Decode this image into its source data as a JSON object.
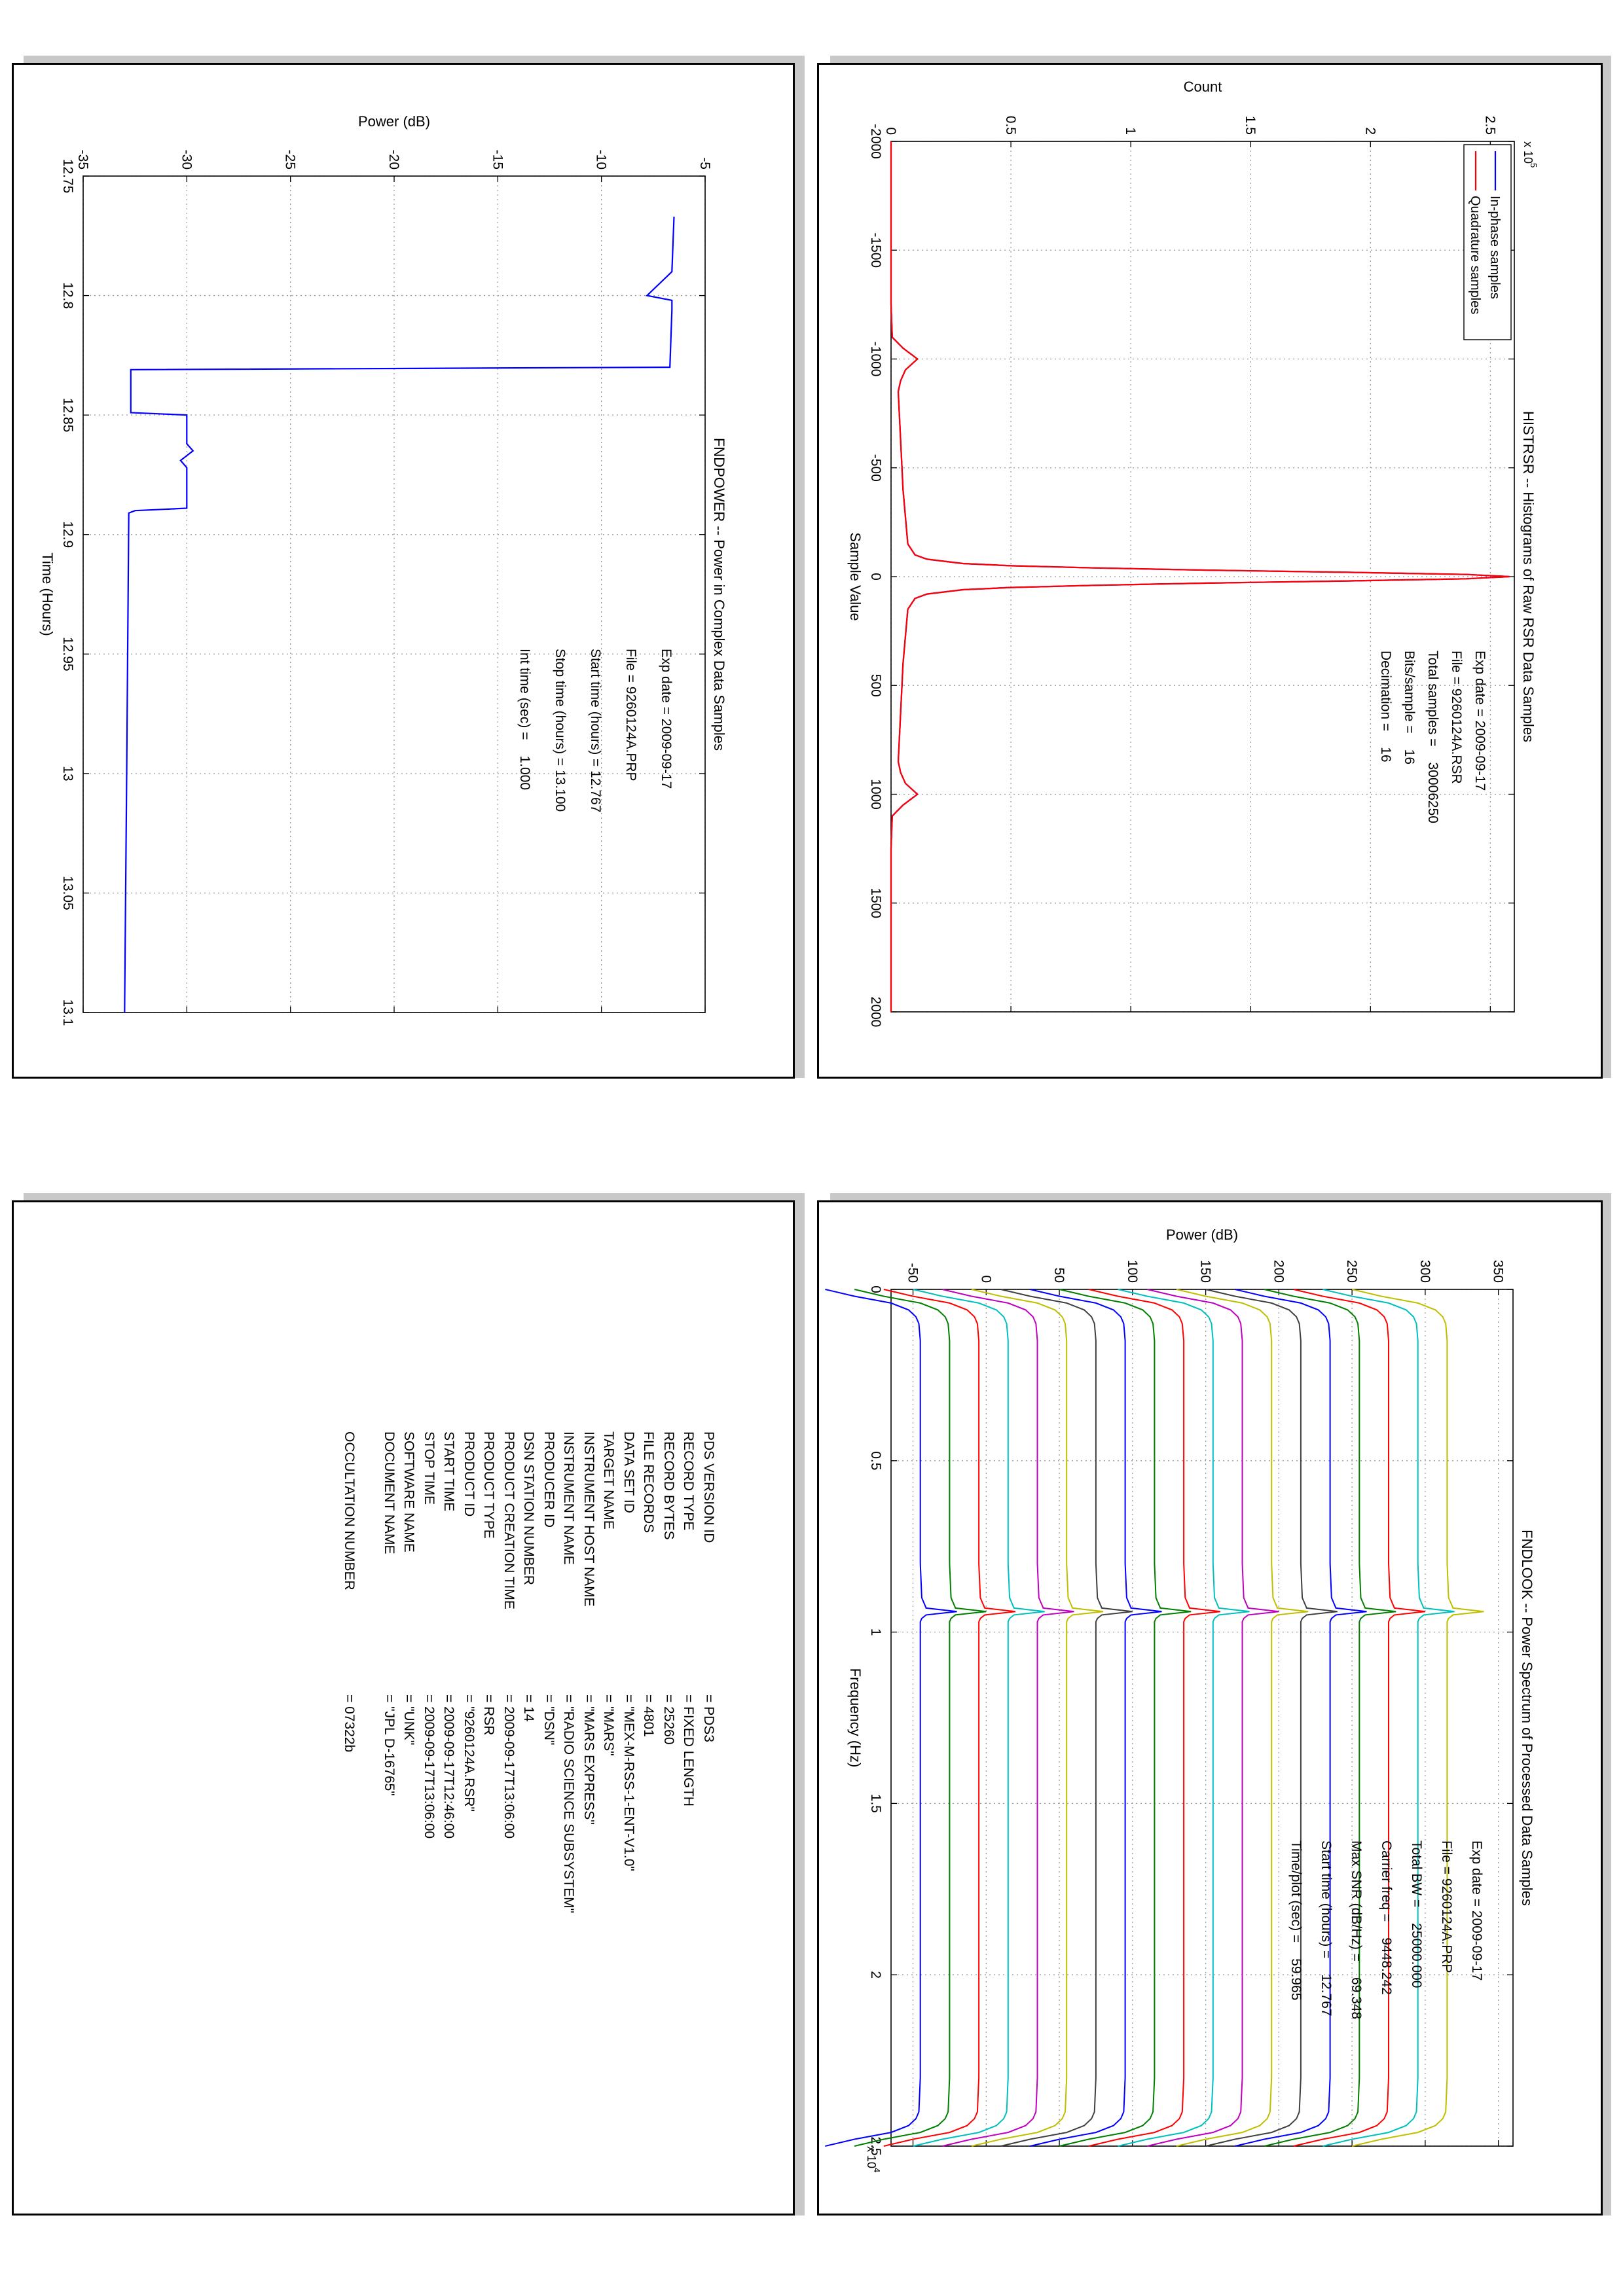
{
  "chart_data": [
    {
      "type": "line",
      "title": "HISTRSR -- Histograms of Raw RSR Data Samples",
      "xlabel": "Sample Value",
      "ylabel": "Count",
      "y_exponent": "x 10",
      "y_exponent_power": "5",
      "xlim": [
        -2000,
        2000
      ],
      "ylim": [
        0,
        2.6
      ],
      "x_ticks": [
        "-2000",
        "-1500",
        "-1000",
        "-500",
        "0",
        "500",
        "1000",
        "1500",
        "2000"
      ],
      "y_ticks": [
        "0",
        "0.5",
        "1",
        "1.5",
        "2",
        "2.5"
      ],
      "grid": true,
      "legend_position": "top-left",
      "series": [
        {
          "name": "In-phase samples",
          "color": "#0000ff",
          "x": [
            -2000,
            -1250,
            -1100,
            -1050,
            -1000,
            -950,
            -900,
            -850,
            -400,
            -150,
            -100,
            -80,
            -60,
            -50,
            -40,
            -30,
            -20,
            -10,
            0,
            10,
            20,
            30,
            40,
            50,
            60,
            80,
            100,
            150,
            400,
            850,
            900,
            950,
            1000,
            1050,
            1100,
            1250,
            2000
          ],
          "y": [
            0,
            0,
            0.005,
            0.05,
            0.11,
            0.06,
            0.04,
            0.03,
            0.05,
            0.07,
            0.1,
            0.15,
            0.3,
            0.5,
            0.85,
            1.3,
            1.9,
            2.4,
            2.58,
            2.4,
            1.9,
            1.3,
            0.85,
            0.5,
            0.3,
            0.15,
            0.1,
            0.07,
            0.05,
            0.03,
            0.04,
            0.06,
            0.11,
            0.05,
            0.005,
            0,
            0
          ]
        },
        {
          "name": "Quadrature samples",
          "color": "#ff0000",
          "x": [
            -2000,
            -1250,
            -1100,
            -1050,
            -1000,
            -950,
            -900,
            -850,
            -400,
            -150,
            -100,
            -80,
            -60,
            -50,
            -40,
            -30,
            -20,
            -10,
            0,
            10,
            20,
            30,
            40,
            50,
            60,
            80,
            100,
            150,
            400,
            850,
            900,
            950,
            1000,
            1050,
            1100,
            1250,
            2000
          ],
          "y": [
            0,
            0,
            0.005,
            0.05,
            0.11,
            0.06,
            0.04,
            0.03,
            0.05,
            0.07,
            0.1,
            0.15,
            0.3,
            0.5,
            0.85,
            1.3,
            1.9,
            2.4,
            2.58,
            2.4,
            1.9,
            1.3,
            0.85,
            0.5,
            0.3,
            0.15,
            0.1,
            0.07,
            0.05,
            0.03,
            0.04,
            0.06,
            0.11,
            0.05,
            0.005,
            0,
            0
          ]
        }
      ],
      "annotation": [
        {
          "label": "Exp date = 2009-09-17"
        },
        {
          "label": "File = 9260124A.RSR"
        },
        {
          "label": "Total samples =",
          "value": "30006250"
        },
        {
          "label": "Bits/sample   =",
          "value": "16"
        },
        {
          "label": "Decimation    =",
          "value": "16"
        }
      ]
    },
    {
      "type": "line",
      "title": "FNDPOWER -- Power in Complex Data Samples",
      "xlabel": "Time (Hours)",
      "ylabel": "Power (dB)",
      "xlim": [
        12.75,
        13.1
      ],
      "ylim": [
        -35,
        -5
      ],
      "x_ticks": [
        "12.75",
        "12.8",
        "12.85",
        "12.9",
        "12.95",
        "13",
        "13.05",
        "13.1"
      ],
      "y_ticks": [
        "-35",
        "-30",
        "-25",
        "-20",
        "-15",
        "-10",
        "-5"
      ],
      "grid": true,
      "series": [
        {
          "color": "#0000ff",
          "x": [
            12.767,
            12.79,
            12.8,
            12.802,
            12.806,
            12.83,
            12.831,
            12.849,
            12.85,
            12.862,
            12.865,
            12.869,
            12.872,
            12.88,
            12.889,
            12.89,
            12.891,
            13.0,
            13.1
          ],
          "y": [
            -6.5,
            -6.6,
            -7.8,
            -6.6,
            -6.6,
            -6.7,
            -32.7,
            -32.7,
            -30.0,
            -30.0,
            -29.7,
            -30.3,
            -30.0,
            -30.0,
            -30.0,
            -32.5,
            -32.8,
            -32.9,
            -33.0
          ]
        }
      ],
      "annotation": [
        {
          "label": "Exp date = 2009-09-17"
        },
        {
          "label": "File = 9260124A.PRP"
        },
        {
          "label": "Start time (hours) = 12.767"
        },
        {
          "label": "Stop time (hours) = 13.100"
        },
        {
          "label": "Int time (sec) =",
          "value": "1.000"
        }
      ]
    },
    {
      "type": "line",
      "title": "FNDLOOK -- Power Spectrum of Processed Data Samples",
      "xlabel": "Frequency (Hz)",
      "ylabel": "Power (dB)",
      "x_exponent": "x 10",
      "x_exponent_power": "4",
      "xlim": [
        0,
        2.5
      ],
      "ylim": [
        -65,
        360
      ],
      "x_ticks": [
        "0",
        "0.5",
        "1",
        "1.5",
        "2",
        "2.5"
      ],
      "y_ticks": [
        "-50",
        "0",
        "50",
        "100",
        "150",
        "200",
        "250",
        "300",
        "350"
      ],
      "grid": true,
      "trace_shape": {
        "x": [
          0,
          0.02,
          0.04,
          0.06,
          0.08,
          0.1,
          0.15,
          0.3,
          0.8,
          0.9,
          0.93,
          0.94,
          0.95,
          0.96,
          0.97,
          1.0,
          1.1,
          2.0,
          2.3,
          2.4,
          2.42,
          2.44,
          2.46,
          2.48,
          2.5
        ],
        "y": [
          -65,
          -45,
          -20,
          -8,
          -3,
          -1,
          0,
          0,
          0,
          1,
          4,
          25,
          4,
          1,
          0,
          0,
          0,
          0,
          0,
          -1,
          -3,
          -8,
          -20,
          -45,
          -65
        ]
      },
      "series": [
        {
          "offset": -45,
          "color": "#0000ff"
        },
        {
          "offset": -25,
          "color": "#007f00"
        },
        {
          "offset": -5,
          "color": "#ff0000"
        },
        {
          "offset": 15,
          "color": "#00bfbf"
        },
        {
          "offset": 35,
          "color": "#bf00bf"
        },
        {
          "offset": 55,
          "color": "#bfbf00"
        },
        {
          "offset": 75,
          "color": "#404040"
        },
        {
          "offset": 95,
          "color": "#0000ff"
        },
        {
          "offset": 115,
          "color": "#007f00"
        },
        {
          "offset": 135,
          "color": "#ff0000"
        },
        {
          "offset": 155,
          "color": "#00bfbf"
        },
        {
          "offset": 175,
          "color": "#bf00bf"
        },
        {
          "offset": 195,
          "color": "#bfbf00"
        },
        {
          "offset": 215,
          "color": "#404040"
        },
        {
          "offset": 235,
          "color": "#0000ff"
        },
        {
          "offset": 255,
          "color": "#007f00"
        },
        {
          "offset": 275,
          "color": "#ff0000"
        },
        {
          "offset": 295,
          "color": "#00bfbf"
        },
        {
          "offset": 315,
          "color": "#bfbf00"
        }
      ],
      "annotation": [
        {
          "label": "Exp date = 2009-09-17"
        },
        {
          "label": "File = 9260124A.PRP"
        },
        {
          "label": "Total BW =",
          "value": "25000.000"
        },
        {
          "label": "Carrier freq =",
          "value": "9448.242"
        },
        {
          "label": "Max SNR (dB/Hz) =",
          "value": "69.348"
        },
        {
          "label": "Start time (hours) =",
          "value": "12.767"
        },
        {
          "label": "Time/plot (sec) =",
          "value": "59.965"
        }
      ]
    }
  ],
  "label_panel": {
    "rows": [
      {
        "key": "PDS VERSION ID",
        "value": "=  PDS3"
      },
      {
        "key": "RECORD TYPE",
        "value": "=  FIXED LENGTH"
      },
      {
        "key": "RECORD BYTES",
        "value": "=  25260"
      },
      {
        "key": "FILE RECORDS",
        "value": "=  4801"
      },
      {
        "key": "DATA SET ID",
        "value": "=  \"MEX-M-RSS-1-ENT-V1.0\""
      },
      {
        "key": "TARGET NAME",
        "value": "=  \"MARS\""
      },
      {
        "key": "INSTRUMENT HOST NAME",
        "value": "=  \"MARS EXPRESS\""
      },
      {
        "key": "INSTRUMENT NAME",
        "value": "=  \"RADIO SCIENCE SUBSYSTEM\""
      },
      {
        "key": "PRODUCER ID",
        "value": "=  \"DSN\""
      },
      {
        "key": "DSN STATION NUMBER",
        "value": "=  14"
      },
      {
        "key": "PRODUCT CREATION TIME",
        "value": "=  2009-09-17T13:06:00"
      },
      {
        "key": "PRODUCT TYPE",
        "value": "=  RSR"
      },
      {
        "key": "PRODUCT ID",
        "value": "=  \"9260124A.RSR\""
      },
      {
        "key": "START TIME",
        "value": "=  2009-09-17T12:46:00"
      },
      {
        "key": "STOP TIME",
        "value": "=  2009-09-17T13:06:00"
      },
      {
        "key": "SOFTWARE NAME",
        "value": "=  \"UNK\""
      },
      {
        "key": "DOCUMENT NAME",
        "value": "=  \"JPL D-16765\""
      },
      {
        "key": "",
        "value": ""
      },
      {
        "key": "OCCULTATION NUMBER",
        "value": "=  07322b"
      }
    ]
  }
}
